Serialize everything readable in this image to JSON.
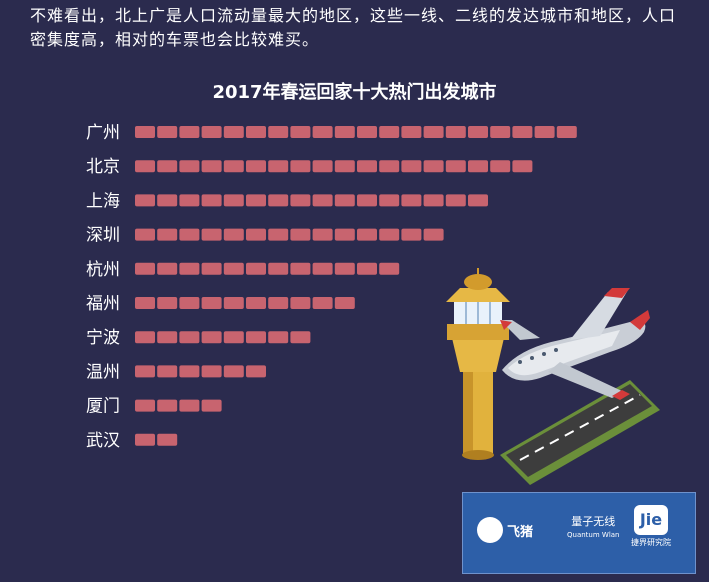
{
  "intro_text": "不难看出，北上广是人口流动量最大的地区，这些一线、二线的发达城市和地区，人口密集度高，相对的车票也会比较难买。",
  "chart_data": {
    "type": "bar",
    "orientation": "horizontal",
    "title": "2017年春运回家十大热门出发城市",
    "categories": [
      "广州",
      "北京",
      "上海",
      "深圳",
      "杭州",
      "福州",
      "宁波",
      "温州",
      "厦门",
      "武汉"
    ],
    "values": [
      20,
      18,
      16,
      14,
      12,
      10,
      8,
      6,
      4,
      2
    ],
    "xlabel": "",
    "ylabel": "",
    "grid": false,
    "legend": "none",
    "bar_color": "#c8646f"
  },
  "logos": {
    "feizhu": "飞猪",
    "quantum": "量子无线",
    "quantum_sub": "Quantum Wlan",
    "jie": "Jie",
    "jie_sub": "捷界研究院"
  },
  "colors": {
    "background": "#2b2b4e",
    "logo_panel": "#2d5fa8"
  },
  "illustration": "airport-tower-and-airplane"
}
